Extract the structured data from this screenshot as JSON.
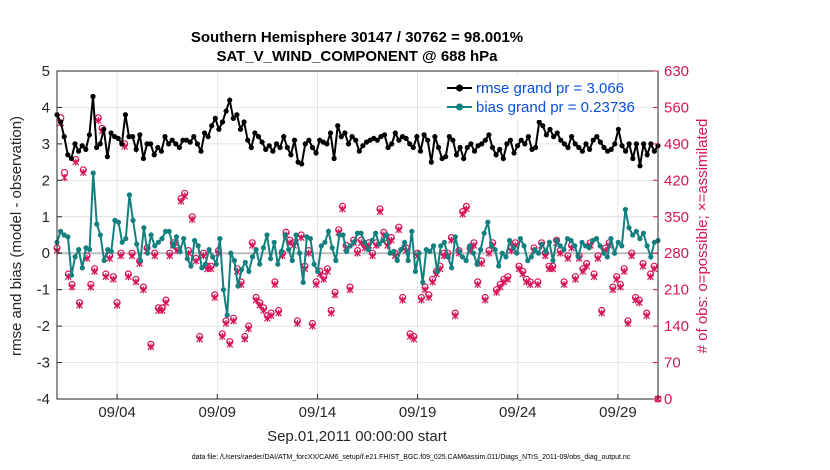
{
  "chart_data": {
    "type": "line",
    "title": "Southern Hemisphere 30147 / 30762 = 98.001%",
    "subtitle": "SAT_V_WIND_COMPONENT @ 688 hPa",
    "xlabel": "Sep.01,2011 00:00:00 start",
    "ylabel_left": "rmse and bias (model - observation)",
    "ylabel_right": "# of obs: o=possible; ×=assimilated",
    "footer": "data file: /Users/raeder/DAI/ATM_forcXX/CAM6_setup/f.e21.FHIST_BGC.f09_025.CAM6assim.011/Diags_NTrS_2011-09/obs_diag_output.nc",
    "x_range": [
      1.0,
      31.0
    ],
    "y_left_range": [
      -4,
      5
    ],
    "y_right_range": [
      0,
      630
    ],
    "x_ticks": [
      {
        "value": 4,
        "label": "09/04"
      },
      {
        "value": 9,
        "label": "09/09"
      },
      {
        "value": 14,
        "label": "09/14"
      },
      {
        "value": 19,
        "label": "09/19"
      },
      {
        "value": 24,
        "label": "09/24"
      },
      {
        "value": 29,
        "label": "09/29"
      }
    ],
    "y_left_ticks": [
      "-4",
      "-3",
      "-2",
      "-1",
      "0",
      "1",
      "2",
      "3",
      "4",
      "5"
    ],
    "y_right_ticks": [
      "0",
      "70",
      "140",
      "210",
      "280",
      "350",
      "420",
      "490",
      "560",
      "630"
    ],
    "legend": {
      "position": "top-right"
    },
    "grid": true,
    "series": [
      {
        "name": "rmse grand pr = 3.066",
        "color": "#000000",
        "axis": "left",
        "marker": "filled-circle",
        "values": [
          3.8,
          3.6,
          3.2,
          2.7,
          2.6,
          3.0,
          2.8,
          2.95,
          2.85,
          3.25,
          4.3,
          2.9,
          3.0,
          3.4,
          2.65,
          3.3,
          3.2,
          3.15,
          3.0,
          3.8,
          3.2,
          3.2,
          2.85,
          3.25,
          2.6,
          3.0,
          3.0,
          2.7,
          2.9,
          2.8,
          3.2,
          3.0,
          3.1,
          3.0,
          2.9,
          3.1,
          3.1,
          3.05,
          3.2,
          3.0,
          2.8,
          3.3,
          3.2,
          3.5,
          3.7,
          3.4,
          3.6,
          3.9,
          4.2,
          3.7,
          3.8,
          3.4,
          3.6,
          3.1,
          2.9,
          3.3,
          3.2,
          3.05,
          2.85,
          2.95,
          2.8,
          3.0,
          2.9,
          3.2,
          2.9,
          2.7,
          3.1,
          2.5,
          2.45,
          3.0,
          3.1,
          2.9,
          2.75,
          3.1,
          3.05,
          3.0,
          3.3,
          2.6,
          3.5,
          3.2,
          3.3,
          3.0,
          3.2,
          3.1,
          2.8,
          2.95,
          3.05,
          3.1,
          3.15,
          3.1,
          3.2,
          3.25,
          2.9,
          3.0,
          3.3,
          3.1,
          3.2,
          3.15,
          3.0,
          2.9,
          3.2,
          2.8,
          3.25,
          3.1,
          2.5,
          3.2,
          2.9,
          2.6,
          2.65,
          3.2,
          3.1,
          2.7,
          2.9,
          2.6,
          2.9,
          3.0,
          2.8,
          2.95,
          3.0,
          3.1,
          3.25,
          2.9,
          2.7,
          2.85,
          2.6,
          3.0,
          3.1,
          2.75,
          2.95,
          3.1,
          3.0,
          3.2,
          2.85,
          2.9,
          3.6,
          3.5,
          3.25,
          3.4,
          3.2,
          3.3,
          3.1,
          3.0,
          2.9,
          3.2,
          3.0,
          2.9,
          2.8,
          3.0,
          2.85,
          3.1,
          3.2,
          3.05,
          2.9,
          2.8,
          2.85,
          3.0,
          3.4,
          2.95,
          2.8,
          3.0,
          2.6,
          3.0,
          2.4,
          3.0,
          2.7,
          3.0,
          2.8,
          2.95
        ]
      },
      {
        "name": "bias grand pr = 0.23736",
        "color": "#138080",
        "axis": "left",
        "marker": "filled-circle",
        "values": [
          0.3,
          0.6,
          0.5,
          0.45,
          -0.6,
          -0.1,
          0.1,
          -0.4,
          0.15,
          0.1,
          2.2,
          0.8,
          0.5,
          -0.2,
          0.1,
          0.05,
          0.9,
          0.85,
          0.3,
          0.4,
          1.6,
          0.9,
          0.25,
          -0.2,
          0.7,
          0.0,
          0.5,
          0.2,
          0.3,
          0.4,
          0.6,
          0.6,
          0.2,
          0.45,
          0.05,
          0.4,
          -0.15,
          -0.35,
          0.35,
          0.2,
          -0.4,
          -0.3,
          0.1,
          -0.1,
          -0.3,
          0.4,
          -1.0,
          -1.7,
          0.0,
          -0.2,
          -0.9,
          -0.45,
          -0.25,
          -0.5,
          -0.1,
          0.1,
          -0.3,
          0.15,
          0.5,
          -0.15,
          0.3,
          -0.3,
          0.05,
          0.5,
          0.1,
          -0.2,
          0.5,
          0.0,
          -0.8,
          0.45,
          0.4,
          -0.3,
          -0.5,
          0.2,
          0.3,
          0.6,
          0.15,
          -0.2,
          0.5,
          0.5,
          0.05,
          0.2,
          0.3,
          0.55,
          0.55,
          0.3,
          0.1,
          0.35,
          0.55,
          0.25,
          0.35,
          0.5,
          0.0,
          0.05,
          -0.2,
          0.1,
          0.3,
          -0.2,
          0.6,
          -0.5,
          0.0,
          -0.8,
          0.1,
          0.05,
          0.2,
          -0.5,
          0.2,
          0.3,
          -0.1,
          -0.4,
          0.45,
          0.05,
          -0.1,
          -0.2,
          0.2,
          0.0,
          -0.3,
          0.1,
          0.55,
          0.85,
          0.2,
          0.1,
          -0.35,
          0.0,
          -0.1,
          0.35,
          0.15,
          0.0,
          0.4,
          0.2,
          -0.2,
          -0.1,
          0.1,
          0.0,
          0.25,
          0.05,
          0.3,
          -0.2,
          0.35,
          0.2,
          0.1,
          0.4,
          0.35,
          0.2,
          -0.1,
          0.3,
          0.2,
          0.15,
          0.35,
          0.4,
          0.2,
          0.0,
          -0.1,
          0.4,
          0.0,
          0.3,
          0.2,
          1.2,
          0.7,
          0.5,
          0.6,
          0.4,
          0.55,
          0.2,
          -0.1,
          0.3,
          0.35
        ]
      },
      {
        "name": "possible",
        "color": "#d6145a",
        "axis": "right",
        "marker": "circle",
        "values": [
          290,
          540,
          435,
          240,
          220,
          460,
          185,
          440,
          275,
          220,
          250,
          540,
          520,
          240,
          275,
          235,
          185,
          280,
          490,
          240,
          280,
          230,
          265,
          215,
          290,
          105,
          280,
          175,
          175,
          190,
          280,
          300,
          290,
          385,
          395,
          285,
          350,
          270,
          120,
          280,
          255,
          255,
          200,
          285,
          125,
          150,
          110,
          155,
          250,
          225,
          120,
          140,
          300,
          195,
          185,
          175,
          160,
          165,
          225,
          170,
          280,
          320,
          305,
          300,
          150,
          315,
          255,
          285,
          145,
          225,
          245,
          235,
          250,
          170,
          205,
          325,
          370,
          295,
          215,
          305,
          285,
          305,
          295,
          300,
          280,
          300,
          365,
          320,
          300,
          310,
          280,
          330,
          195,
          290,
          125,
          120,
          280,
          195,
          215,
          200,
          230,
          245,
          255,
          280,
          280,
          310,
          165,
          285,
          360,
          370,
          290,
          300,
          225,
          265,
          195,
          285,
          300,
          210,
          220,
          230,
          235,
          290,
          300,
          255,
          245,
          230,
          225,
          290,
          225,
          300,
          280,
          255,
          255,
          305,
          285,
          225,
          275,
          295,
          235,
          275,
          250,
          260,
          300,
          240,
          275,
          170,
          290,
          300,
          215,
          235,
          220,
          250,
          150,
          280,
          195,
          190,
          260,
          165,
          240,
          255,
          0
        ]
      },
      {
        "name": "assimilated",
        "color": "#d6145a",
        "axis": "right",
        "marker": "cross",
        "values": [
          285,
          530,
          425,
          235,
          215,
          455,
          180,
          435,
          270,
          215,
          245,
          535,
          515,
          235,
          270,
          230,
          180,
          275,
          485,
          235,
          275,
          225,
          260,
          210,
          285,
          100,
          275,
          170,
          170,
          185,
          275,
          295,
          285,
          380,
          390,
          280,
          345,
          265,
          115,
          275,
          250,
          250,
          195,
          280,
          120,
          145,
          105,
          150,
          245,
          220,
          115,
          135,
          295,
          190,
          180,
          170,
          155,
          160,
          220,
          165,
          275,
          315,
          300,
          295,
          145,
          310,
          250,
          280,
          140,
          220,
          240,
          230,
          245,
          165,
          200,
          320,
          365,
          290,
          210,
          300,
          280,
          300,
          290,
          295,
          275,
          295,
          360,
          315,
          295,
          305,
          275,
          325,
          190,
          285,
          120,
          115,
          275,
          190,
          210,
          195,
          225,
          240,
          250,
          275,
          275,
          305,
          160,
          280,
          355,
          365,
          285,
          295,
          220,
          260,
          190,
          280,
          295,
          205,
          215,
          225,
          230,
          285,
          295,
          250,
          240,
          225,
          220,
          285,
          220,
          295,
          275,
          250,
          250,
          300,
          280,
          220,
          270,
          290,
          230,
          270,
          245,
          255,
          295,
          235,
          270,
          165,
          285,
          295,
          210,
          230,
          215,
          245,
          145,
          275,
          190,
          185,
          255,
          160,
          235,
          250,
          0
        ]
      }
    ]
  }
}
